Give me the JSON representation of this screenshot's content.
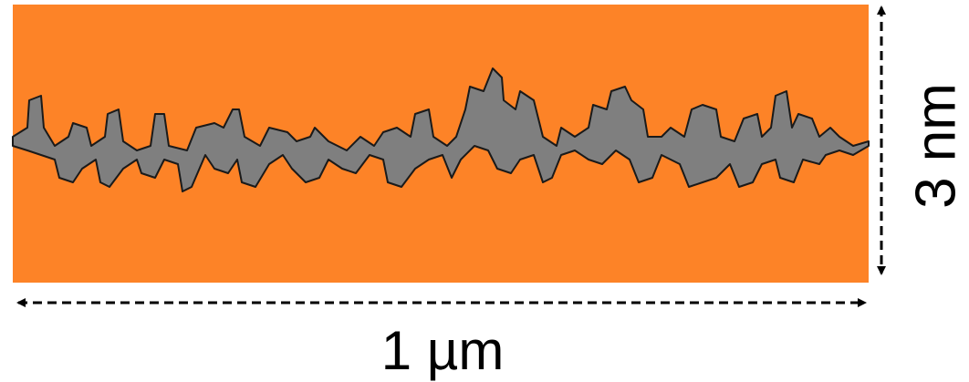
{
  "labels": {
    "height": "3 nm",
    "width": "1 µm"
  }
}
